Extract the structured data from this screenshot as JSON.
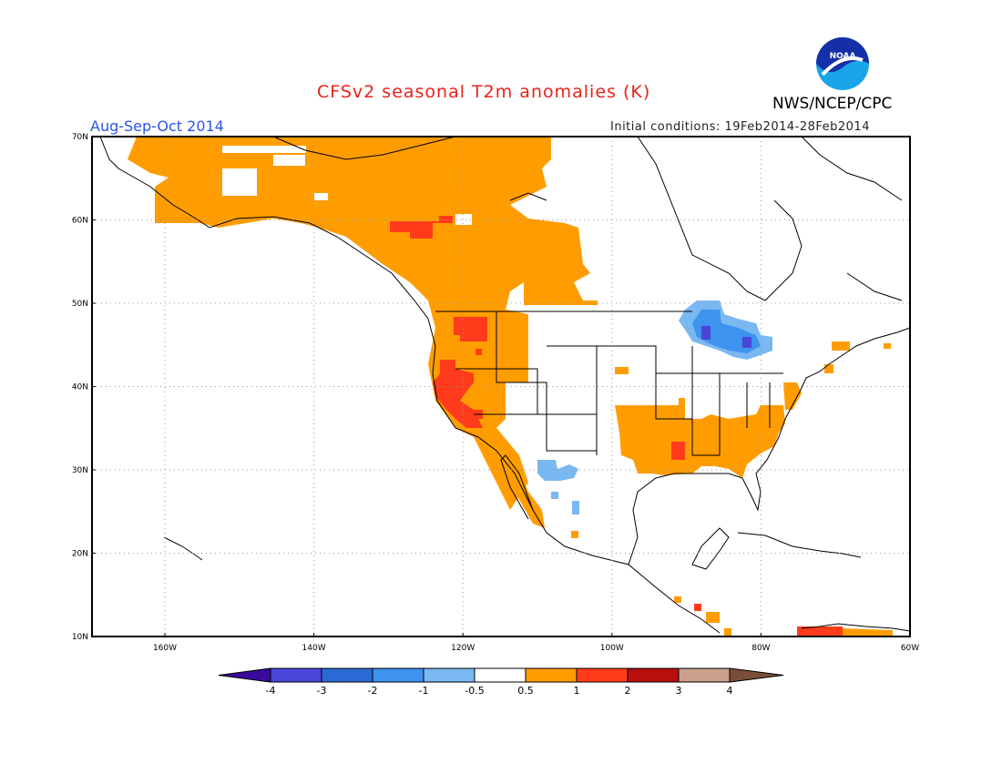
{
  "header": {
    "title": "CFSv2 seasonal T2m anomalies (K)",
    "season": "Aug-Sep-Oct 2014",
    "initial_conditions": "Initial conditions: 19Feb2014-28Feb2014",
    "agency": "NWS/NCEP/CPC",
    "logo_text": "NOAA"
  },
  "axes": {
    "lat_labels": [
      "70N",
      "60N",
      "50N",
      "40N",
      "30N",
      "20N",
      "10N"
    ],
    "lon_labels": [
      "160W",
      "140W",
      "120W",
      "100W",
      "80W",
      "60W"
    ]
  },
  "colorbar": {
    "labels": [
      "-4",
      "-3",
      "-2",
      "-1",
      "-0.5",
      "0.5",
      "1",
      "2",
      "3",
      "4"
    ],
    "colors": [
      "#3a0a9c",
      "#4a45d8",
      "#2a6ad6",
      "#3d93ee",
      "#7ab8f2",
      "#ffffff",
      "#ff9d00",
      "#ff3b1b",
      "#b80f0f",
      "#c9a08c",
      "#7b4e3a"
    ]
  },
  "colors": {
    "warm_05_1": "#ff9d00",
    "warm_1_2": "#ff3b1b",
    "cool_05_1": "#7ab8f2",
    "cool_1_2": "#3d93ee",
    "cool_2_3": "#2a6ad6",
    "cool_3_4": "#4a45d8",
    "title": "#e8221b",
    "season": "#2a54e6"
  }
}
